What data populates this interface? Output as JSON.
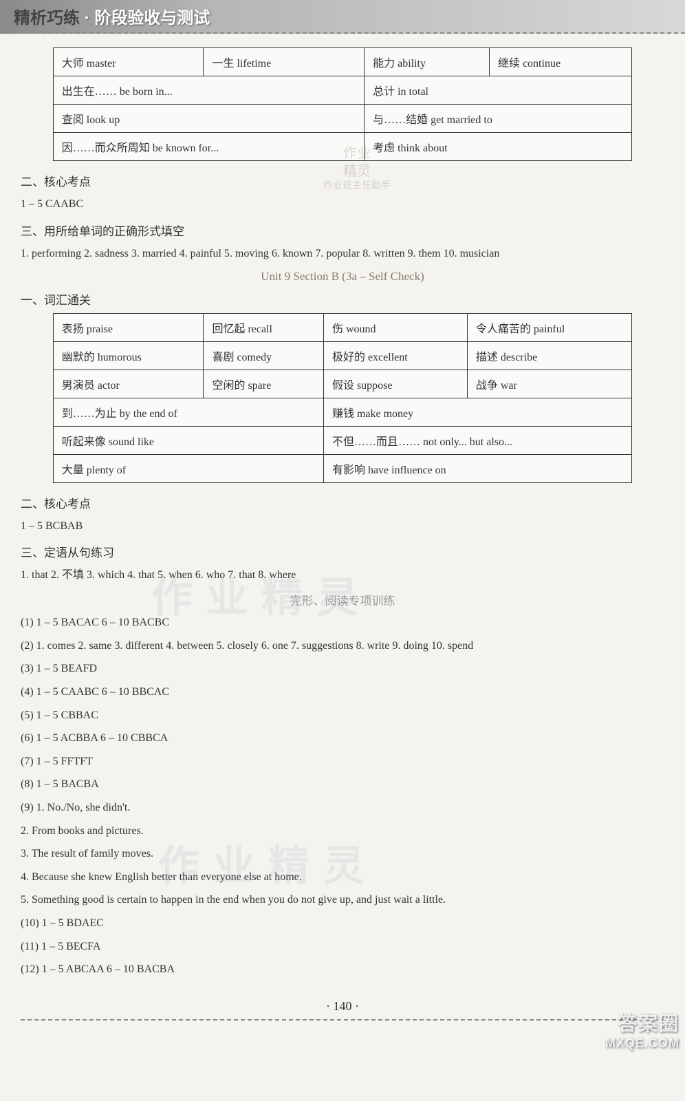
{
  "header": {
    "title_main": "精析巧练",
    "title_sub": " · 阶段验收与测试"
  },
  "table1": {
    "rows": [
      [
        "大师 master",
        "一生 lifetime",
        "能力 ability",
        "继续 continue"
      ],
      [
        "出生在…… be born in...",
        "",
        "总计 in total",
        ""
      ],
      [
        "查阅 look up",
        "",
        "与……结婚 get married to",
        ""
      ],
      [
        "因……而众所周知 be known for...",
        "",
        "考虑 think about",
        ""
      ]
    ],
    "merge": [
      [
        0,
        0,
        0,
        0
      ],
      [
        2,
        0,
        2,
        0
      ],
      [
        2,
        0,
        2,
        0
      ],
      [
        2,
        0,
        2,
        0
      ]
    ]
  },
  "sec2": {
    "heading": "二、核心考点",
    "answer": "1 – 5 CAABC"
  },
  "sec3": {
    "heading": "三、用所给单词的正确形式填空",
    "answer": "1. performing 2. sadness 3. married 4. painful 5. moving 6. known 7. popular 8. written 9. them 10. musician"
  },
  "divider1": "Unit 9   Section B (3a – Self Check)",
  "sec_vocab": {
    "heading": "一、词汇通关"
  },
  "table2": {
    "rows": [
      [
        "表扬 praise",
        "回忆起 recall",
        "伤 wound",
        "令人痛苦的 painful"
      ],
      [
        "幽默的 humorous",
        "喜剧 comedy",
        "极好的 excellent",
        "描述 describe"
      ],
      [
        "男演员 actor",
        "空闲的 spare",
        "假设 suppose",
        "战争 war"
      ],
      [
        "到……为止 by the end of",
        "",
        "赚钱 make money",
        ""
      ],
      [
        "听起来像 sound like",
        "",
        "不但……而且…… not only... but also...",
        ""
      ],
      [
        "大量 plenty of",
        "",
        "有影响 have influence on",
        ""
      ]
    ],
    "merge": [
      [
        0,
        0,
        0,
        0
      ],
      [
        0,
        0,
        0,
        0
      ],
      [
        0,
        0,
        0,
        0
      ],
      [
        2,
        0,
        2,
        0
      ],
      [
        2,
        0,
        2,
        0
      ],
      [
        2,
        0,
        2,
        0
      ]
    ]
  },
  "sec4": {
    "heading": "二、核心考点",
    "answer": "1 – 5 BCBAB"
  },
  "sec5": {
    "heading": "三、定语从句练习",
    "answer": "1. that 2. 不填 3. which 4. that 5. when 6. who 7. that 8. where"
  },
  "divider2": "完形、阅读专项训练",
  "items": [
    "(1) 1 – 5 BACAC 6 – 10 BACBC",
    "(2) 1. comes 2. same 3. different 4. between 5. closely 6. one 7. suggestions 8. write 9. doing 10. spend",
    "(3) 1 – 5 BEAFD",
    "(4) 1 – 5 CAABC 6 – 10 BBCAC",
    "(5) 1 – 5 CBBAC",
    "(6) 1 – 5 ACBBA 6 – 10 CBBCA",
    "(7) 1 – 5 FFTFT",
    "(8) 1 – 5 BACBA",
    "(9) 1. No./No, she didn't.",
    "2. From books and pictures.",
    "3. The result of family moves.",
    "4. Because she knew English better than everyone else at home.",
    "5. Something good is certain to happen in the end when you do not give up, and just wait a little.",
    "(10) 1 – 5 BDAEC",
    "(11) 1 – 5 BECFA",
    "(12) 1 – 5 ABCAA 6 – 10 BACBA"
  ],
  "watermarks": {
    "text": "作业精灵"
  },
  "stamp": {
    "line1": "作业",
    "line2": "精灵",
    "line3": "作业班主任助手"
  },
  "page_number": "· 140 ·",
  "corner": {
    "top": "答案圈",
    "bottom": "MXQE.COM"
  }
}
